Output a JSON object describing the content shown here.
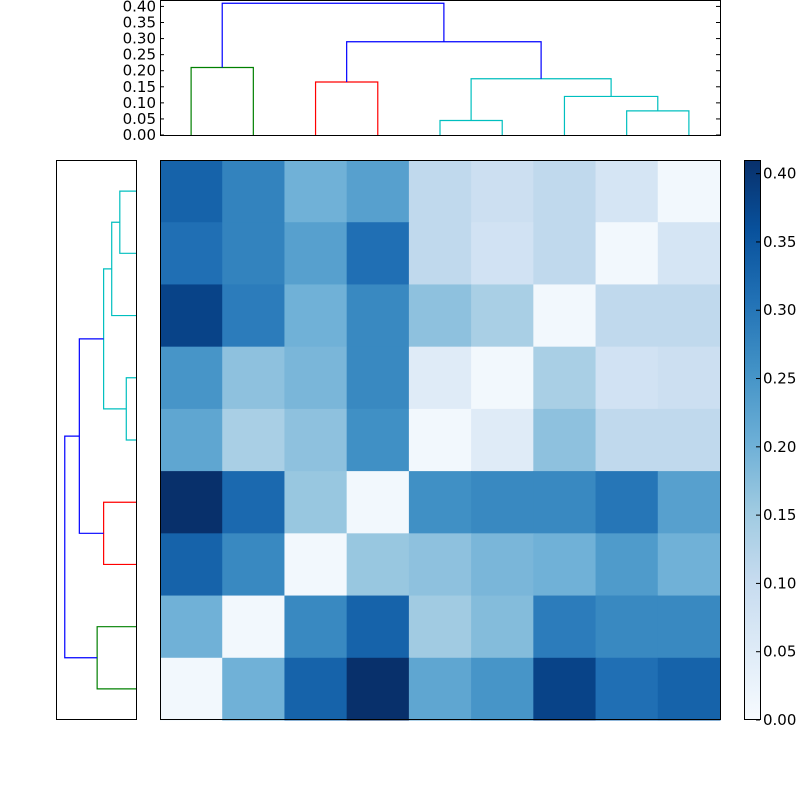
{
  "chart_data": [
    {
      "type": "dendrogram",
      "orientation": "top",
      "ylim": [
        0,
        0.42
      ],
      "ticks": [
        "0.00",
        "0.05",
        "0.10",
        "0.15",
        "0.20",
        "0.25",
        "0.30",
        "0.35",
        "0.40"
      ],
      "links": [
        {
          "leaves": [
            0,
            1
          ],
          "height": 0.21,
          "color": "#008000"
        },
        {
          "leaves": [
            2,
            3
          ],
          "height": 0.165,
          "color": "#ff0000"
        },
        {
          "leaves": [
            4,
            5
          ],
          "height": 0.045,
          "color": "#00bfbf"
        },
        {
          "leaves": [
            7,
            8
          ],
          "height": 0.075,
          "color": "#00bfbf"
        },
        {
          "leaves": [
            6,
            7.5
          ],
          "height": 0.12,
          "color": "#00bfbf"
        },
        {
          "leaves": [
            4.5,
            6.75
          ],
          "height": 0.175,
          "color": "#00bfbf"
        },
        {
          "leaves": [
            2.5,
            5.625
          ],
          "height": 0.29,
          "color": "#0000ff"
        },
        {
          "leaves": [
            0.5,
            4.0625
          ],
          "height": 0.41,
          "color": "#0000ff"
        }
      ]
    },
    {
      "type": "dendrogram",
      "orientation": "left",
      "xlim": [
        0,
        0.42
      ],
      "links": [
        {
          "leaves": [
            0,
            1
          ],
          "height": 0.12,
          "color": "#008000"
        },
        {
          "leaves": [
            2,
            3
          ],
          "height": 0.1,
          "color": "#ff0000"
        },
        {
          "leaves": [
            4,
            5
          ],
          "height": 0.03,
          "color": "#00bfbf"
        },
        {
          "leaves": [
            7,
            8
          ],
          "height": 0.05,
          "color": "#00bfbf"
        },
        {
          "leaves": [
            6,
            7.5
          ],
          "height": 0.075,
          "color": "#00bfbf"
        },
        {
          "leaves": [
            4.5,
            6.75
          ],
          "height": 0.1,
          "color": "#00bfbf"
        },
        {
          "leaves": [
            2.5,
            5.625
          ],
          "height": 0.175,
          "color": "#0000ff"
        },
        {
          "leaves": [
            0.5,
            4.0625
          ],
          "height": 0.22,
          "color": "#0000ff"
        }
      ]
    },
    {
      "type": "heatmap",
      "colormap": "Blues",
      "vmin": 0,
      "vmax": 0.41,
      "rows": 9,
      "cols": 9,
      "values": [
        [
          0.33,
          0.28,
          0.2,
          0.23,
          0.11,
          0.09,
          0.11,
          0.07,
          0.01
        ],
        [
          0.31,
          0.28,
          0.23,
          0.31,
          0.11,
          0.08,
          0.11,
          0.01,
          0.07
        ],
        [
          0.38,
          0.29,
          0.2,
          0.27,
          0.17,
          0.14,
          0.01,
          0.11,
          0.11
        ],
        [
          0.25,
          0.17,
          0.19,
          0.27,
          0.05,
          0.01,
          0.14,
          0.08,
          0.09
        ],
        [
          0.22,
          0.14,
          0.17,
          0.26,
          0.01,
          0.05,
          0.17,
          0.11,
          0.11
        ],
        [
          0.41,
          0.32,
          0.16,
          0.01,
          0.26,
          0.27,
          0.27,
          0.3,
          0.23
        ],
        [
          0.33,
          0.27,
          0.01,
          0.16,
          0.17,
          0.19,
          0.2,
          0.24,
          0.2
        ],
        [
          0.2,
          0.01,
          0.27,
          0.33,
          0.15,
          0.18,
          0.29,
          0.27,
          0.27
        ],
        [
          0.01,
          0.2,
          0.33,
          0.41,
          0.22,
          0.25,
          0.38,
          0.31,
          0.33
        ]
      ]
    },
    {
      "type": "colorbar",
      "ylim": [
        0,
        0.41
      ],
      "ticks": [
        "0.00",
        "0.05",
        "0.10",
        "0.15",
        "0.20",
        "0.25",
        "0.30",
        "0.35",
        "0.40"
      ]
    }
  ]
}
